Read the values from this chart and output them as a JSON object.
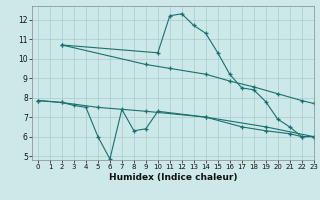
{
  "xlabel": "Humidex (Indice chaleur)",
  "bg_color": "#cce8e8",
  "grid_color": "#aacccc",
  "line_color": "#1a7070",
  "xlim": [
    -0.5,
    23
  ],
  "ylim": [
    4.8,
    12.7
  ],
  "yticks": [
    5,
    6,
    7,
    8,
    9,
    10,
    11,
    12
  ],
  "xticks": [
    0,
    1,
    2,
    3,
    4,
    5,
    6,
    7,
    8,
    9,
    10,
    11,
    12,
    13,
    14,
    15,
    16,
    17,
    18,
    19,
    20,
    21,
    22,
    23
  ],
  "line1_x": [
    2,
    10,
    11,
    12,
    13,
    14,
    15,
    16,
    17,
    18,
    19,
    20,
    21,
    22,
    23
  ],
  "line1_y": [
    10.7,
    10.3,
    12.2,
    12.3,
    11.7,
    11.3,
    10.3,
    9.2,
    8.5,
    8.4,
    7.8,
    6.9,
    6.5,
    6.0,
    6.0
  ],
  "line2_x": [
    2,
    9,
    11,
    14,
    16,
    18,
    20,
    22,
    23
  ],
  "line2_y": [
    10.7,
    9.7,
    9.5,
    9.2,
    8.85,
    8.55,
    8.2,
    7.85,
    7.7
  ],
  "line3_x": [
    0,
    2,
    3,
    4,
    5,
    6,
    7,
    8,
    9,
    10,
    14,
    17,
    19,
    21,
    22,
    23
  ],
  "line3_y": [
    7.85,
    7.75,
    7.6,
    7.5,
    6.0,
    4.85,
    7.4,
    6.3,
    6.4,
    7.3,
    7.0,
    6.5,
    6.3,
    6.15,
    6.0,
    6.0
  ],
  "line4_x": [
    0,
    2,
    5,
    9,
    14,
    19,
    23
  ],
  "line4_y": [
    7.85,
    7.75,
    7.5,
    7.3,
    7.0,
    6.5,
    6.0
  ]
}
